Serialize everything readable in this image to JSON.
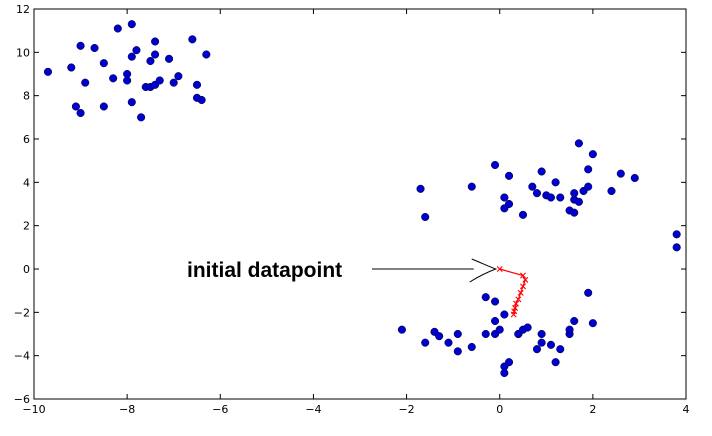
{
  "chart_data": {
    "type": "scatter",
    "title": "",
    "xlabel": "",
    "ylabel": "",
    "xlim": [
      -10,
      4
    ],
    "ylim": [
      -6,
      12
    ],
    "xticks": [
      -10,
      -8,
      -6,
      -4,
      -2,
      0,
      2,
      4
    ],
    "yticks": [
      -6,
      -4,
      -2,
      0,
      2,
      4,
      6,
      8,
      10,
      12
    ],
    "grid": false,
    "legend": "none",
    "series": [
      {
        "marker": "circle",
        "color": "#0000cc",
        "points": [
          [
            -9.7,
            9.1
          ],
          [
            -9.2,
            9.3
          ],
          [
            -9.0,
            10.3
          ],
          [
            -8.7,
            10.2
          ],
          [
            -9.1,
            7.5
          ],
          [
            -9.0,
            7.2
          ],
          [
            -8.9,
            8.6
          ],
          [
            -8.5,
            9.5
          ],
          [
            -8.5,
            7.5
          ],
          [
            -8.3,
            8.8
          ],
          [
            -8.2,
            11.1
          ],
          [
            -8.0,
            8.7
          ],
          [
            -8.0,
            9.0
          ],
          [
            -7.9,
            11.3
          ],
          [
            -7.9,
            9.8
          ],
          [
            -7.9,
            7.7
          ],
          [
            -7.8,
            10.1
          ],
          [
            -7.7,
            7.0
          ],
          [
            -7.6,
            8.4
          ],
          [
            -7.5,
            8.4
          ],
          [
            -7.5,
            9.6
          ],
          [
            -7.4,
            10.5
          ],
          [
            -7.4,
            9.9
          ],
          [
            -7.4,
            8.5
          ],
          [
            -7.3,
            8.7
          ],
          [
            -7.1,
            9.7
          ],
          [
            -7.0,
            8.6
          ],
          [
            -6.9,
            8.9
          ],
          [
            -6.6,
            10.6
          ],
          [
            -6.5,
            8.5
          ],
          [
            -6.5,
            7.9
          ],
          [
            -6.4,
            7.8
          ],
          [
            -6.3,
            9.9
          ],
          [
            -1.7,
            3.7
          ],
          [
            -1.6,
            2.4
          ],
          [
            -0.6,
            3.8
          ],
          [
            -0.1,
            4.8
          ],
          [
            0.1,
            2.8
          ],
          [
            0.1,
            3.3
          ],
          [
            0.2,
            4.3
          ],
          [
            0.2,
            3.0
          ],
          [
            0.5,
            2.5
          ],
          [
            0.7,
            3.8
          ],
          [
            0.8,
            3.5
          ],
          [
            0.9,
            4.5
          ],
          [
            1.0,
            3.4
          ],
          [
            1.1,
            3.3
          ],
          [
            1.2,
            4.0
          ],
          [
            1.3,
            3.3
          ],
          [
            1.5,
            2.7
          ],
          [
            1.6,
            3.2
          ],
          [
            1.6,
            3.5
          ],
          [
            1.6,
            2.6
          ],
          [
            1.7,
            5.8
          ],
          [
            1.7,
            3.1
          ],
          [
            1.8,
            3.6
          ],
          [
            1.9,
            4.6
          ],
          [
            1.9,
            3.8
          ],
          [
            2.0,
            5.3
          ],
          [
            2.4,
            3.6
          ],
          [
            2.6,
            4.4
          ],
          [
            2.9,
            4.2
          ],
          [
            3.8,
            1.6
          ],
          [
            3.8,
            1.0
          ],
          [
            -2.1,
            -2.8
          ],
          [
            -1.6,
            -3.4
          ],
          [
            -1.4,
            -2.9
          ],
          [
            -1.3,
            -3.1
          ],
          [
            -1.1,
            -3.4
          ],
          [
            -0.9,
            -3.0
          ],
          [
            -0.9,
            -3.8
          ],
          [
            -0.6,
            -3.6
          ],
          [
            -0.3,
            -1.3
          ],
          [
            -0.3,
            -3.0
          ],
          [
            -0.1,
            -1.5
          ],
          [
            -0.1,
            -2.4
          ],
          [
            -0.1,
            -3.0
          ],
          [
            0.0,
            -2.8
          ],
          [
            0.1,
            -2.1
          ],
          [
            0.1,
            -4.8
          ],
          [
            0.1,
            -4.5
          ],
          [
            0.2,
            -4.3
          ],
          [
            0.4,
            -3.0
          ],
          [
            0.4,
            -3.0
          ],
          [
            0.5,
            -2.8
          ],
          [
            0.6,
            -2.7
          ],
          [
            0.8,
            -3.7
          ],
          [
            0.9,
            -3.0
          ],
          [
            0.9,
            -3.4
          ],
          [
            1.1,
            -3.5
          ],
          [
            1.2,
            -4.3
          ],
          [
            1.3,
            -3.7
          ],
          [
            1.5,
            -3.0
          ],
          [
            1.5,
            -2.8
          ],
          [
            1.6,
            -2.4
          ],
          [
            1.9,
            -1.1
          ],
          [
            2.0,
            -2.5
          ]
        ]
      },
      {
        "marker": "x-line",
        "color": "#ff0000",
        "points": [
          [
            0.0,
            0.0
          ],
          [
            0.5,
            -0.3
          ],
          [
            0.55,
            -0.5
          ],
          [
            0.5,
            -0.8
          ],
          [
            0.45,
            -1.1
          ],
          [
            0.4,
            -1.4
          ],
          [
            0.35,
            -1.6
          ],
          [
            0.33,
            -1.8
          ],
          [
            0.31,
            -1.95
          ],
          [
            0.3,
            -2.1
          ]
        ]
      }
    ],
    "annotation": {
      "text": "initial datapoint",
      "target": [
        0.0,
        0.0
      ]
    }
  }
}
